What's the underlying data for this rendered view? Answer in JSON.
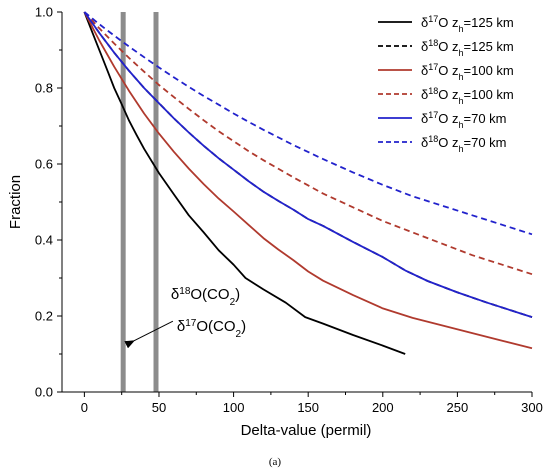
{
  "chart_data": {
    "type": "line",
    "title": "",
    "xlabel": "Delta-value (permil)",
    "ylabel": "Fraction",
    "xlim": [
      -15,
      300
    ],
    "ylim": [
      0,
      1.0
    ],
    "x_ticks": [
      "0",
      "50",
      "100",
      "150",
      "200",
      "250",
      "300"
    ],
    "y_ticks": [
      "0.0",
      "0.2",
      "0.4",
      "0.6",
      "0.8",
      "1.0"
    ],
    "x_tick_values": [
      0,
      50,
      100,
      150,
      200,
      250,
      300
    ],
    "y_tick_values": [
      0.0,
      0.2,
      0.4,
      0.6,
      0.8,
      1.0
    ],
    "grid": false,
    "legend_position": "top-right",
    "series": [
      {
        "legend": {
          "base": "δ",
          "sup": "17",
          "iso": "O z",
          "sub": "h",
          "tail": "=125 km"
        },
        "color": "#000000",
        "dash": "solid",
        "x": [
          0,
          4,
          8,
          12,
          16,
          20,
          25,
          30,
          35,
          40,
          50,
          60,
          70,
          80,
          90,
          100,
          108,
          120,
          135,
          148,
          160,
          180,
          200,
          215
        ],
        "y": [
          1.0,
          0.96,
          0.92,
          0.88,
          0.84,
          0.8,
          0.757,
          0.714,
          0.676,
          0.64,
          0.576,
          0.52,
          0.465,
          0.42,
          0.373,
          0.335,
          0.3,
          0.27,
          0.235,
          0.197,
          0.18,
          0.15,
          0.122,
          0.1
        ]
      },
      {
        "legend": {
          "base": "δ",
          "sup": "18",
          "iso": "O z",
          "sub": "h",
          "tail": "=125 km"
        },
        "color": "#000000",
        "dash": "dashed",
        "x": [
          0,
          10,
          20,
          30,
          40,
          50,
          60,
          70,
          80,
          90,
          100,
          110,
          120,
          130,
          140,
          150,
          160,
          180,
          200,
          215,
          230,
          250,
          270,
          300
        ],
        "y": [
          1.0,
          0.945,
          0.893,
          0.845,
          0.8,
          0.76,
          0.72,
          0.683,
          0.648,
          0.615,
          0.585,
          0.555,
          0.527,
          0.503,
          0.48,
          0.455,
          0.437,
          0.395,
          0.355,
          0.32,
          0.292,
          0.262,
          0.235,
          0.197
        ]
      },
      {
        "legend": {
          "base": "δ",
          "sup": "17",
          "iso": "O z",
          "sub": "h",
          "tail": "=100 km"
        },
        "color": "#b03a2e",
        "dash": "solid",
        "x": [
          0,
          10,
          20,
          30,
          40,
          50,
          60,
          70,
          80,
          90,
          100,
          110,
          120,
          130,
          140,
          150,
          160,
          180,
          200,
          220,
          240,
          260,
          280,
          300
        ],
        "y": [
          1.0,
          0.925,
          0.856,
          0.792,
          0.733,
          0.68,
          0.632,
          0.588,
          0.547,
          0.509,
          0.475,
          0.44,
          0.405,
          0.375,
          0.347,
          0.317,
          0.293,
          0.255,
          0.22,
          0.195,
          0.175,
          0.155,
          0.135,
          0.115
        ]
      },
      {
        "legend": {
          "base": "δ",
          "sup": "18",
          "iso": "O z",
          "sub": "h",
          "tail": "=100 km"
        },
        "color": "#b03a2e",
        "dash": "dashed",
        "x": [
          0,
          10,
          20,
          30,
          40,
          50,
          60,
          70,
          80,
          90,
          100,
          110,
          120,
          140,
          160,
          180,
          200,
          220,
          240,
          260,
          280,
          300
        ],
        "y": [
          1.0,
          0.957,
          0.917,
          0.879,
          0.843,
          0.808,
          0.776,
          0.745,
          0.715,
          0.686,
          0.66,
          0.634,
          0.61,
          0.565,
          0.522,
          0.486,
          0.45,
          0.42,
          0.39,
          0.36,
          0.335,
          0.31
        ]
      },
      {
        "legend": {
          "base": "δ",
          "sup": "17",
          "iso": "O z",
          "sub": "h",
          "tail": "=70 km"
        },
        "color": "#2222cc",
        "dash": "solid",
        "x": [
          0,
          10,
          20,
          30,
          40,
          50,
          60,
          70,
          80,
          90,
          100,
          110,
          120,
          130,
          140,
          150,
          160,
          180,
          200,
          215,
          230,
          250,
          270,
          300
        ],
        "y": [
          1.0,
          0.945,
          0.893,
          0.845,
          0.8,
          0.76,
          0.72,
          0.683,
          0.648,
          0.615,
          0.585,
          0.555,
          0.527,
          0.503,
          0.48,
          0.455,
          0.437,
          0.395,
          0.355,
          0.32,
          0.292,
          0.262,
          0.235,
          0.197
        ]
      },
      {
        "legend": {
          "base": "δ",
          "sup": "18",
          "iso": "O z",
          "sub": "h",
          "tail": "=70 km"
        },
        "color": "#2222cc",
        "dash": "dashed",
        "x": [
          0,
          10,
          20,
          30,
          40,
          50,
          60,
          70,
          80,
          90,
          100,
          110,
          120,
          140,
          160,
          180,
          200,
          220,
          240,
          260,
          280,
          300
        ],
        "y": [
          1.0,
          0.968,
          0.938,
          0.909,
          0.881,
          0.854,
          0.828,
          0.803,
          0.779,
          0.756,
          0.733,
          0.711,
          0.69,
          0.65,
          0.613,
          0.578,
          0.545,
          0.515,
          0.49,
          0.465,
          0.44,
          0.415
        ]
      }
    ],
    "vertical_markers": [
      {
        "x": 26,
        "color": "#8c8c8c"
      },
      {
        "x": 48,
        "color": "#8c8c8c"
      }
    ],
    "annotations": [
      {
        "base": "δ",
        "sup": "18",
        "rest": "O(CO",
        "sub": "2",
        "close": ")",
        "x": 58,
        "y": 0.245
      },
      {
        "base": "δ",
        "sup": "17",
        "rest": "O(CO",
        "sub": "2",
        "close": ")",
        "x": 62,
        "y": 0.16,
        "arrow_to": {
          "x": 26,
          "y": 0.135
        }
      }
    ],
    "caption": "(a)"
  }
}
